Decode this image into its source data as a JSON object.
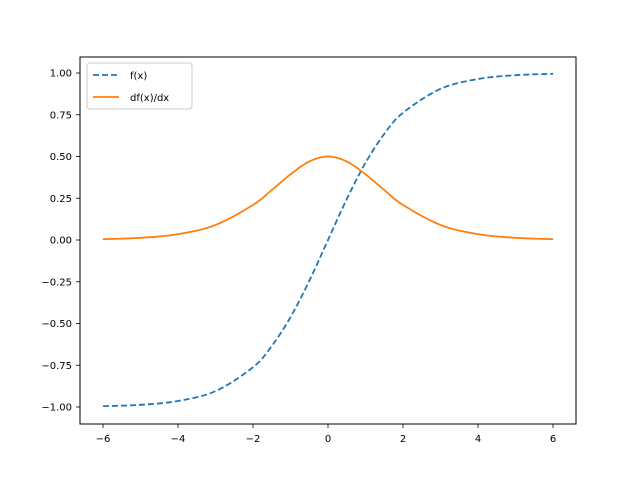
{
  "chart_data": {
    "type": "line",
    "title": "",
    "xlabel": "",
    "ylabel": "",
    "xlim": [
      -6.6,
      6.6
    ],
    "ylim": [
      -1.1,
      1.1
    ],
    "x_ticks": [
      -6,
      -4,
      -2,
      0,
      2,
      4,
      6
    ],
    "x_tick_labels": [
      "−6",
      "−4",
      "−2",
      "0",
      "2",
      "4",
      "6"
    ],
    "y_ticks": [
      1.0,
      0.75,
      0.5,
      0.25,
      0.0,
      -0.25,
      -0.5,
      -0.75,
      -1.0
    ],
    "y_tick_labels": [
      "1.00",
      "0.75",
      "0.50",
      "0.25",
      "0.00",
      "−0.25",
      "−0.50",
      "−0.75",
      "−1.00"
    ],
    "grid": false,
    "legend_position": "upper left",
    "x": [
      -6,
      -5,
      -4,
      -3,
      -2,
      -1.5,
      -1,
      -0.5,
      0,
      0.5,
      1,
      1.5,
      2,
      3,
      4,
      5,
      6
    ],
    "series": [
      {
        "name": "f(x)",
        "color": "#1f77b4",
        "linestyle": "dashed",
        "values": [
          -0.995,
          -0.987,
          -0.964,
          -0.905,
          -0.762,
          -0.635,
          -0.462,
          -0.245,
          0.0,
          0.245,
          0.462,
          0.635,
          0.762,
          0.905,
          0.964,
          0.987,
          0.995
        ]
      },
      {
        "name": "df(x)/dx",
        "color": "#ff7f0e",
        "linestyle": "solid",
        "values": [
          0.005,
          0.013,
          0.035,
          0.09,
          0.21,
          0.299,
          0.393,
          0.47,
          0.5,
          0.47,
          0.393,
          0.299,
          0.21,
          0.09,
          0.035,
          0.013,
          0.005
        ]
      }
    ]
  },
  "legend": {
    "items": [
      {
        "label": "f(x)",
        "color": "#1f77b4"
      },
      {
        "label": "df(x)/dx",
        "color": "#ff7f0e"
      }
    ]
  }
}
